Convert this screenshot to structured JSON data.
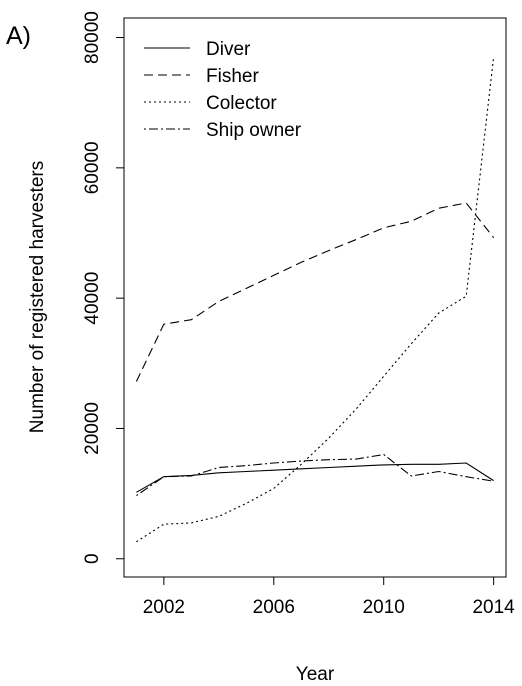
{
  "panel_label": "A)",
  "chart_data": {
    "type": "line",
    "title": "",
    "xlabel": "Year",
    "ylabel": "Number of registered harvesters",
    "xlim": [
      2000.55,
      2014.45
    ],
    "ylim": [
      -2800,
      83000
    ],
    "x_ticks": [
      2002,
      2006,
      2010,
      2014
    ],
    "y_ticks": [
      0,
      20000,
      40000,
      60000,
      80000
    ],
    "grid": false,
    "legend_position": "top-left",
    "x": [
      2001,
      2002,
      2003,
      2004,
      2005,
      2006,
      2007,
      2008,
      2009,
      2010,
      2011,
      2012,
      2013,
      2014
    ],
    "series": [
      {
        "name": "Diver",
        "dash": "solid",
        "values": [
          10200,
          12600,
          12800,
          13200,
          13400,
          13600,
          13800,
          14000,
          14200,
          14400,
          14500,
          14500,
          14700,
          12000
        ]
      },
      {
        "name": "Fisher",
        "dash": "dashed",
        "values": [
          27200,
          36000,
          36700,
          39500,
          41500,
          43500,
          45500,
          47300,
          49000,
          50800,
          51800,
          53800,
          54600,
          49300
        ]
      },
      {
        "name": "Colector",
        "dash": "dotted",
        "values": [
          2600,
          5300,
          5500,
          6500,
          8500,
          10800,
          14500,
          18500,
          23000,
          28000,
          33000,
          37700,
          40300,
          77000
        ]
      },
      {
        "name": "Ship owner",
        "dash": "dotdash",
        "values": [
          9700,
          12600,
          12700,
          14000,
          14300,
          14700,
          15000,
          15200,
          15300,
          16000,
          12700,
          13400,
          12600,
          11900
        ]
      }
    ]
  }
}
